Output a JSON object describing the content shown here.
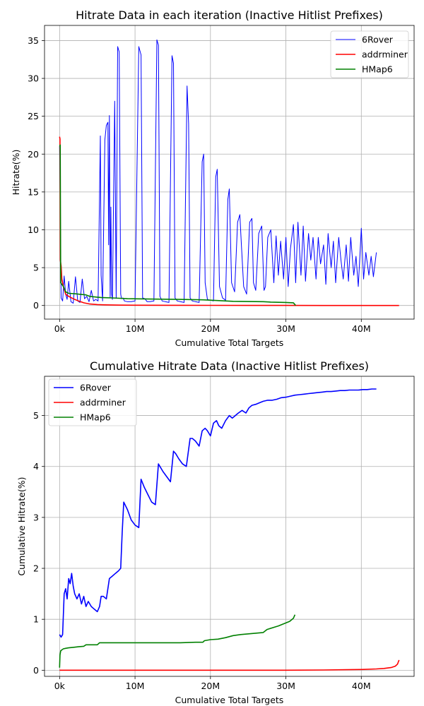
{
  "chart_data": [
    {
      "type": "line",
      "title": "Hitrate Data in each iteration (Inactive Hitlist Prefixes)",
      "xlabel": "Cumulative Total Targets",
      "ylabel": "Hitrate(%)",
      "xlim": [
        -2000000,
        47000000
      ],
      "ylim": [
        -1.8,
        37
      ],
      "xticks": [
        {
          "value": 0,
          "label": "0k"
        },
        {
          "value": 10000000,
          "label": "10M"
        },
        {
          "value": 20000000,
          "label": "20M"
        },
        {
          "value": 30000000,
          "label": "30M"
        },
        {
          "value": 40000000,
          "label": "40M"
        }
      ],
      "yticks": [
        {
          "value": 0,
          "label": "0"
        },
        {
          "value": 5,
          "label": "5"
        },
        {
          "value": 10,
          "label": "10"
        },
        {
          "value": 15,
          "label": "15"
        },
        {
          "value": 20,
          "label": "20"
        },
        {
          "value": 25,
          "label": "25"
        },
        {
          "value": 30,
          "label": "30"
        },
        {
          "value": 35,
          "label": "35"
        }
      ],
      "grid": true,
      "legend_position": "top-right",
      "series": [
        {
          "name": "6Rover",
          "color": "#0000ff",
          "x": [
            0,
            200000,
            400000,
            600000,
            800000,
            1000000,
            1200000,
            1500000,
            1800000,
            2100000,
            2400000,
            2700000,
            3000000,
            3300000,
            3600000,
            3900000,
            4200000,
            4500000,
            4800000,
            5100000,
            5400000,
            5500000,
            5700000,
            6000000,
            6200000,
            6400000,
            6500000,
            6600000,
            6700000,
            6800000,
            6900000,
            7000000,
            7300000,
            7500000,
            7700000,
            7900000,
            8100000,
            8200000,
            8400000,
            8600000,
            9000000,
            9500000,
            10000000,
            10500000,
            10800000,
            11000000,
            11300000,
            11600000,
            12000000,
            12500000,
            12900000,
            13100000,
            13300000,
            13600000,
            14000000,
            14500000,
            14900000,
            15100000,
            15300000,
            15600000,
            16000000,
            16500000,
            16900000,
            17100000,
            17300000,
            17600000,
            18000000,
            18500000,
            18900000,
            19100000,
            19300000,
            19600000,
            20000000,
            20400000,
            20700000,
            20900000,
            21200000,
            21600000,
            22000000,
            22300000,
            22500000,
            22800000,
            23200000,
            23600000,
            23900000,
            24100000,
            24400000,
            24800000,
            25200000,
            25500000,
            25700000,
            26000000,
            26400000,
            26800000,
            27100000,
            27300000,
            27600000,
            28000000,
            28400000,
            28700000,
            29000000,
            29300000,
            29700000,
            30000000,
            30300000,
            30600000,
            31000000,
            31300000,
            31600000,
            32000000,
            32300000,
            32600000,
            33000000,
            33300000,
            33600000,
            34000000,
            34300000,
            34600000,
            35000000,
            35300000,
            35600000,
            36000000,
            36300000,
            36600000,
            37000000,
            37300000,
            37600000,
            38000000,
            38300000,
            38600000,
            39000000,
            39300000,
            39600000,
            40000000,
            40300000,
            40600000,
            41000000,
            41300000,
            41600000,
            42000000
          ],
          "y": [
            21,
            1,
            0.6,
            3.9,
            1.5,
            0.8,
            3.2,
            0.5,
            0.3,
            3.8,
            0.6,
            0.4,
            3.5,
            0.9,
            1.2,
            0.5,
            2.0,
            0.6,
            0.8,
            0.6,
            22.4,
            4.0,
            0.6,
            21.9,
            23.8,
            24.2,
            8.0,
            25.1,
            1.0,
            13.0,
            1.5,
            0.8,
            27.0,
            1.0,
            34.2,
            33.5,
            1.5,
            0.9,
            1.0,
            0.6,
            0.5,
            0.5,
            0.6,
            34.2,
            33.1,
            1.0,
            0.9,
            0.5,
            0.5,
            0.6,
            35.1,
            34.4,
            1.2,
            0.6,
            0.5,
            0.4,
            33.0,
            32.0,
            1.0,
            0.6,
            0.5,
            0.4,
            29.0,
            24.0,
            1.0,
            0.6,
            0.5,
            0.4,
            19.0,
            20.0,
            3.0,
            0.8,
            0.7,
            0.6,
            17.0,
            18.0,
            2.5,
            1.0,
            0.7,
            14.0,
            15.4,
            3.0,
            1.8,
            11.0,
            12.0,
            8.0,
            2.5,
            1.5,
            11.0,
            11.5,
            3.0,
            2.0,
            9.5,
            10.5,
            2.0,
            2.5,
            9.0,
            10.0,
            3.0,
            9.2,
            4.0,
            8.5,
            3.5,
            9.0,
            2.5,
            7.5,
            10.7,
            3.0,
            11.0,
            4.0,
            10.5,
            3.2,
            9.5,
            6.0,
            9.0,
            3.5,
            9.0,
            5.5,
            8.0,
            2.8,
            9.5,
            5.0,
            8.5,
            3.0,
            9.0,
            6.0,
            3.5,
            8.0,
            3.2,
            9.0,
            4.0,
            6.5,
            2.5,
            10.2,
            3.5,
            7.0,
            4.0,
            6.5,
            3.8,
            7.0
          ]
        },
        {
          "name": "addrminer",
          "color": "#ff0000",
          "x": [
            0,
            50000,
            100000,
            200000,
            300000,
            500000,
            800000,
            1200000,
            1800000,
            2500000,
            3200000,
            4000000,
            5000000,
            6000000,
            8000000,
            10000000,
            15000000,
            20000000,
            25000000,
            30000000,
            35000000,
            40000000,
            45000000
          ],
          "y": [
            22.3,
            22.0,
            6.0,
            5.2,
            3.5,
            2.5,
            1.5,
            1.2,
            0.9,
            0.6,
            0.35,
            0.2,
            0.12,
            0.08,
            0.05,
            0.04,
            0.03,
            0.02,
            0.01,
            0.01,
            0.0,
            0.0,
            0.0
          ]
        },
        {
          "name": "HMap6",
          "color": "#008000",
          "x": [
            0,
            80000,
            150000,
            300000,
            500000,
            800000,
            1200000,
            2000000,
            3500000,
            4000000,
            5000000,
            5500000,
            7000000,
            8000000,
            9000000,
            12000000,
            16000000,
            19000000,
            20000000,
            23000000,
            27000000,
            28000000,
            30000000,
            31000000,
            31300000
          ],
          "y": [
            21.0,
            21.2,
            3.0,
            2.8,
            2.5,
            1.8,
            1.6,
            1.55,
            1.4,
            1.2,
            1.1,
            1.05,
            1.0,
            0.95,
            0.9,
            0.85,
            0.8,
            0.75,
            0.7,
            0.55,
            0.5,
            0.45,
            0.4,
            0.35,
            0.0
          ]
        }
      ]
    },
    {
      "type": "line",
      "title": "Cumulative Hitrate Data  (Inactive Hitlist Prefixes)",
      "xlabel": "Cumulative Total Targets",
      "ylabel": "Cumulative Hitrate(%)",
      "xlim": [
        -2000000,
        47000000
      ],
      "ylim": [
        -0.12,
        5.77
      ],
      "xticks": [
        {
          "value": 0,
          "label": "0k"
        },
        {
          "value": 10000000,
          "label": "10M"
        },
        {
          "value": 20000000,
          "label": "20M"
        },
        {
          "value": 30000000,
          "label": "30M"
        },
        {
          "value": 40000000,
          "label": "40M"
        }
      ],
      "yticks": [
        {
          "value": 0,
          "label": "0"
        },
        {
          "value": 1,
          "label": "1"
        },
        {
          "value": 2,
          "label": "2"
        },
        {
          "value": 3,
          "label": "3"
        },
        {
          "value": 4,
          "label": "4"
        },
        {
          "value": 5,
          "label": "5"
        }
      ],
      "grid": true,
      "legend_position": "top-left",
      "series": [
        {
          "name": "6Rover",
          "color": "#0000ff",
          "x": [
            0,
            200000,
            400000,
            600000,
            800000,
            1000000,
            1200000,
            1400000,
            1600000,
            1800000,
            2000000,
            2300000,
            2600000,
            2900000,
            3200000,
            3500000,
            3800000,
            4200000,
            4600000,
            5000000,
            5300000,
            5500000,
            5800000,
            6200000,
            6600000,
            7000000,
            7400000,
            7800000,
            8100000,
            8300000,
            8500000,
            9000000,
            9500000,
            10000000,
            10500000,
            10800000,
            11200000,
            11700000,
            12200000,
            12700000,
            13100000,
            13300000,
            13700000,
            14200000,
            14700000,
            15100000,
            15400000,
            15800000,
            16300000,
            16800000,
            17300000,
            17600000,
            18000000,
            18500000,
            18900000,
            19300000,
            19600000,
            20000000,
            20400000,
            20800000,
            21100000,
            21500000,
            22000000,
            22500000,
            22900000,
            23300000,
            23700000,
            24200000,
            24700000,
            25100000,
            25500000,
            26000000,
            26500000,
            27000000,
            27600000,
            28200000,
            28800000,
            29400000,
            30000000,
            30600000,
            31200000,
            31800000,
            32400000,
            33000000,
            33600000,
            34200000,
            34800000,
            35400000,
            36000000,
            36600000,
            37200000,
            37800000,
            38400000,
            39000000,
            39600000,
            40200000,
            40800000,
            41400000,
            42000000
          ],
          "y": [
            0.7,
            0.65,
            0.7,
            1.5,
            1.6,
            1.4,
            1.8,
            1.7,
            1.9,
            1.65,
            1.5,
            1.4,
            1.5,
            1.3,
            1.45,
            1.25,
            1.35,
            1.25,
            1.2,
            1.15,
            1.25,
            1.45,
            1.45,
            1.4,
            1.8,
            1.85,
            1.9,
            1.95,
            2.0,
            2.7,
            3.3,
            3.15,
            2.95,
            2.85,
            2.8,
            3.75,
            3.6,
            3.45,
            3.3,
            3.25,
            4.05,
            4.0,
            3.9,
            3.8,
            3.7,
            4.3,
            4.25,
            4.15,
            4.05,
            4.0,
            4.55,
            4.55,
            4.5,
            4.4,
            4.7,
            4.75,
            4.7,
            4.6,
            4.85,
            4.9,
            4.8,
            4.75,
            4.9,
            5.0,
            4.95,
            5.0,
            5.05,
            5.1,
            5.05,
            5.15,
            5.2,
            5.22,
            5.25,
            5.28,
            5.3,
            5.3,
            5.32,
            5.35,
            5.36,
            5.38,
            5.4,
            5.41,
            5.42,
            5.43,
            5.44,
            5.45,
            5.46,
            5.47,
            5.47,
            5.48,
            5.49,
            5.49,
            5.5,
            5.5,
            5.5,
            5.51,
            5.51,
            5.52,
            5.52
          ]
        },
        {
          "name": "addrminer",
          "color": "#ff0000",
          "x": [
            0,
            5000000,
            10000000,
            15000000,
            20000000,
            25000000,
            30000000,
            35000000,
            38000000,
            40000000,
            42000000,
            43000000,
            44000000,
            44500000,
            44800000,
            45000000
          ],
          "y": [
            0.0,
            0.0,
            0.0,
            0.0,
            0.0,
            0.0,
            0.0,
            0.005,
            0.01,
            0.015,
            0.025,
            0.035,
            0.055,
            0.08,
            0.12,
            0.2
          ]
        },
        {
          "name": "HMap6",
          "color": "#008000",
          "x": [
            0,
            50000,
            150000,
            300000,
            500000,
            800000,
            1200000,
            1800000,
            2500000,
            3200000,
            3500000,
            5000000,
            5300000,
            7000000,
            10000000,
            13000000,
            16000000,
            18000000,
            19000000,
            19200000,
            20000000,
            21000000,
            22000000,
            23000000,
            24000000,
            27000000,
            27500000,
            29000000,
            30500000,
            31000000,
            31200000
          ],
          "y": [
            0.05,
            0.3,
            0.38,
            0.4,
            0.42,
            0.43,
            0.44,
            0.45,
            0.46,
            0.47,
            0.5,
            0.5,
            0.54,
            0.54,
            0.54,
            0.54,
            0.54,
            0.55,
            0.55,
            0.58,
            0.6,
            0.61,
            0.64,
            0.68,
            0.7,
            0.74,
            0.8,
            0.87,
            0.96,
            1.02,
            1.09
          ]
        }
      ]
    }
  ]
}
